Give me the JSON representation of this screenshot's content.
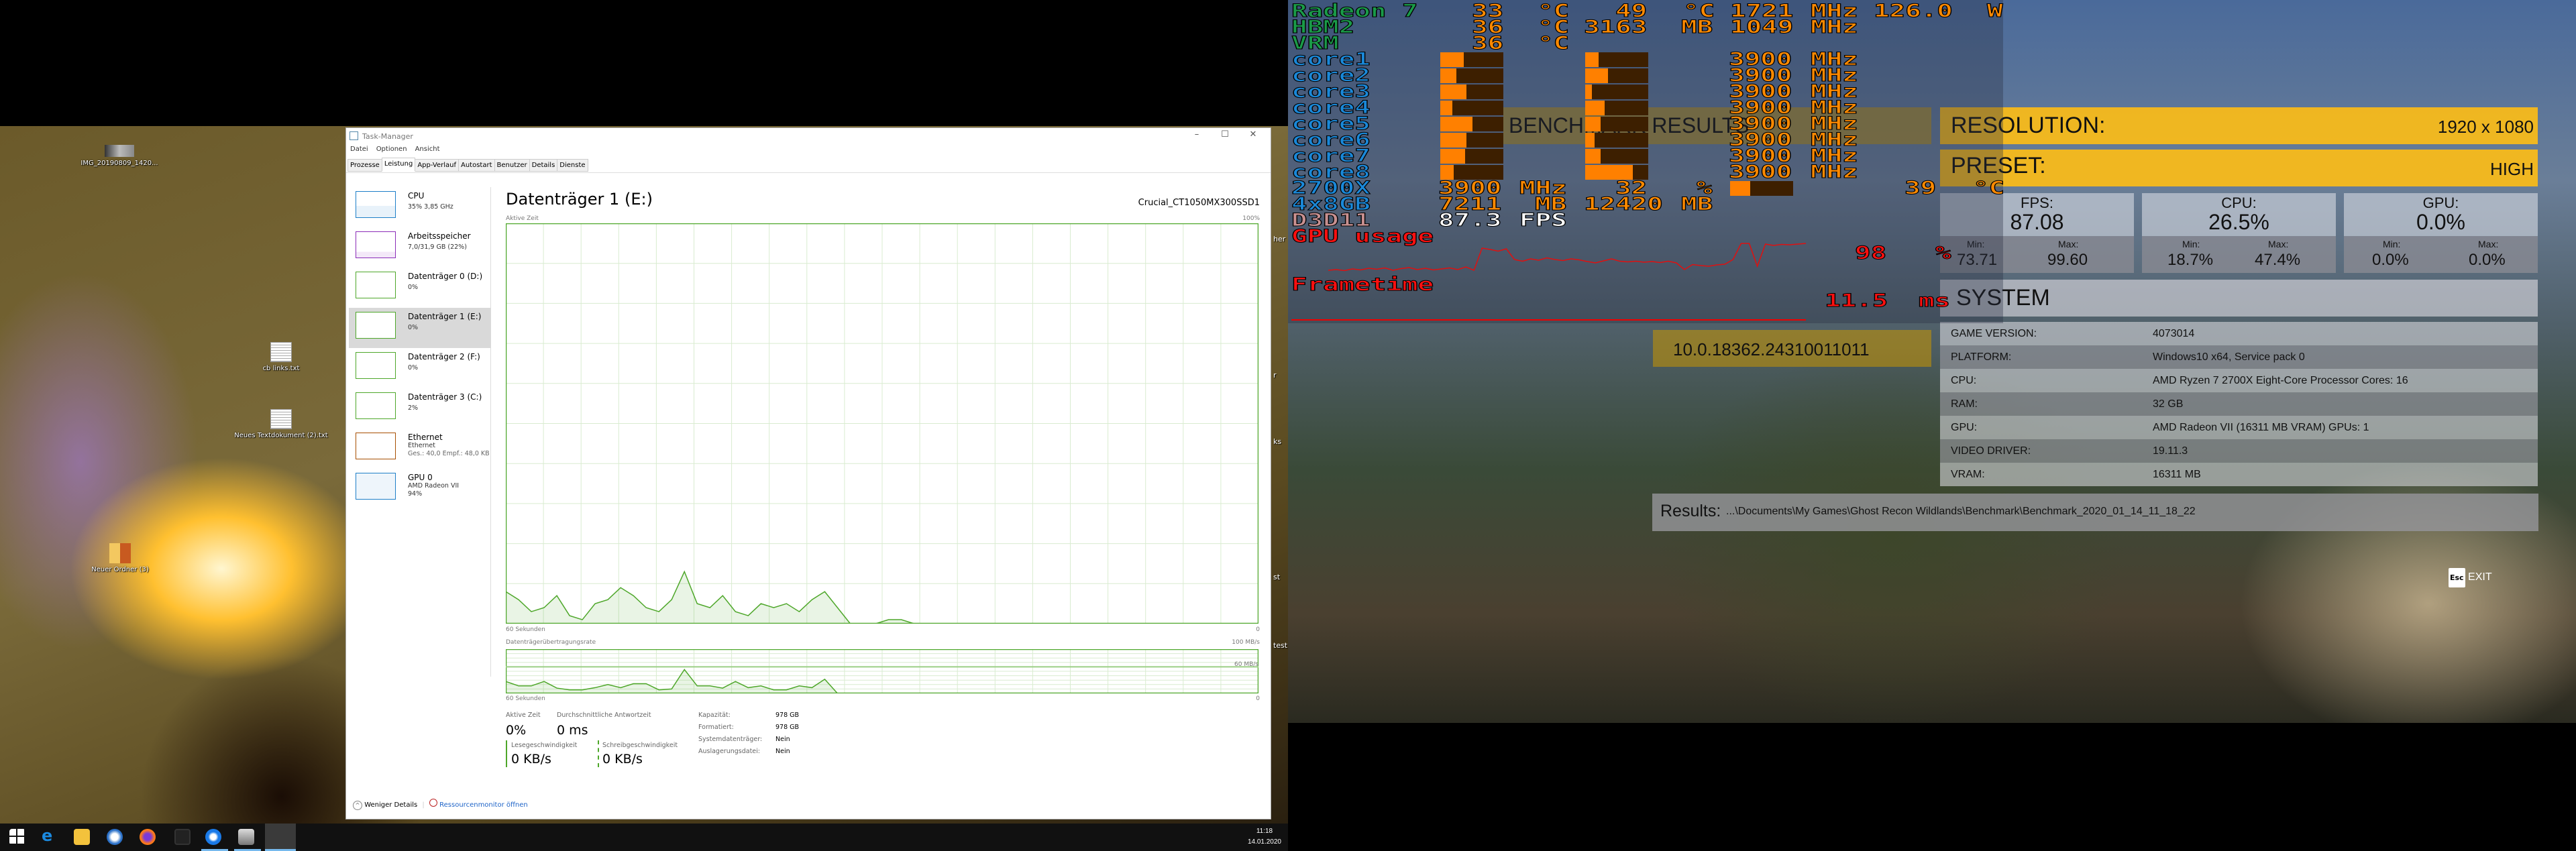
{
  "desktop": {
    "icons": [
      {
        "label": "IMG_20190809_1420..."
      },
      {
        "label": "cb links.txt"
      },
      {
        "label": "Neues Textdokument (2).txt"
      },
      {
        "label": "Neuer Ordner (3)"
      }
    ],
    "edge_fragments": [
      "her",
      "r",
      "ks",
      "st",
      "test"
    ]
  },
  "taskbar": {
    "icons": [
      "windows-start",
      "edge",
      "file-explorer",
      "thunderbird",
      "firefox",
      "app",
      "uplay",
      "app2",
      "task-manager"
    ],
    "time": "11:18",
    "date": "14.01.2020"
  },
  "taskmanager": {
    "title": "Task-Manager",
    "menu": [
      "Datei",
      "Optionen",
      "Ansicht"
    ],
    "tabs": [
      "Prozesse",
      "Leistung",
      "App-Verlauf",
      "Autostart",
      "Benutzer",
      "Details",
      "Dienste"
    ],
    "active_tab": "Leistung",
    "sidebar": [
      {
        "name": "CPU",
        "sub": "35% 3,85 GHz",
        "color": "#1e7fc8"
      },
      {
        "name": "Arbeitsspeicher",
        "sub": "7,0/31,9 GB (22%)",
        "color": "#8b2cb8"
      },
      {
        "name": "Datenträger 0 (D:)",
        "sub": "0%",
        "color": "#4ea72a"
      },
      {
        "name": "Datenträger 1 (E:)",
        "sub": "0%",
        "color": "#4ea72a"
      },
      {
        "name": "Datenträger 2 (F:)",
        "sub": "0%",
        "color": "#4ea72a"
      },
      {
        "name": "Datenträger 3 (C:)",
        "sub": "2%",
        "color": "#4ea72a"
      },
      {
        "name": "Ethernet",
        "sub": "Ethernet",
        "sub2": "Ges.: 40,0  Empf.: 48,0 KB",
        "color": "#a74f01"
      },
      {
        "name": "GPU 0",
        "sub": "AMD Radeon VII",
        "sub2": "94%",
        "color": "#1e7fc8"
      }
    ],
    "heading": "Datenträger 1 (E:)",
    "model": "Crucial_CT1050MX300SSD1",
    "graph1": {
      "label": "Aktive Zeit",
      "max": "100%",
      "time": "60 Sekunden",
      "min": "0",
      "values": [
        8,
        6,
        3,
        4,
        7,
        2,
        1,
        5,
        6,
        9,
        7,
        4,
        3,
        6,
        13,
        5,
        4,
        7,
        3,
        2,
        5,
        4,
        5,
        3,
        6,
        8,
        4,
        0,
        0,
        0,
        1,
        1,
        0,
        0,
        0,
        0,
        0,
        0,
        0,
        0,
        0,
        0,
        0,
        0,
        0,
        0,
        0,
        0,
        0,
        0,
        0,
        0,
        0,
        0,
        0,
        0,
        0,
        0,
        0,
        0
      ]
    },
    "graph2": {
      "label": "Datenträgerübertragungsrate",
      "max": "100 MB/s",
      "mid": "60 MB/s",
      "time": "60 Sekunden",
      "min": "0",
      "values": [
        27,
        17,
        17,
        27,
        12,
        8,
        8,
        13,
        20,
        13,
        22,
        22,
        8,
        10,
        54,
        17,
        17,
        12,
        27,
        13,
        17,
        8,
        8,
        17,
        13,
        32,
        0,
        0,
        0,
        0,
        0,
        0,
        0,
        0,
        0,
        0,
        0,
        0,
        0,
        0,
        0,
        0,
        0,
        0,
        0,
        0,
        0,
        0,
        0,
        0,
        0,
        0,
        0,
        0,
        0,
        0,
        0,
        0,
        0,
        0
      ]
    },
    "stats": {
      "active_label": "Aktive Zeit",
      "active_value": "0%",
      "resp_label": "Durchschnittliche Antwortzeit",
      "resp_value": "0 ms",
      "read_label": "Lesegeschwindigkeit",
      "read_value": "0 KB/s",
      "write_label": "Schreibgeschwindigkeit",
      "write_value": "0 KB/s",
      "props": [
        {
          "k": "Kapazität:",
          "v": "978 GB"
        },
        {
          "k": "Formatiert:",
          "v": "978 GB"
        },
        {
          "k": "Systemdatenträger:",
          "v": "Nein"
        },
        {
          "k": "Auslagerungsdatei:",
          "v": "Nein"
        }
      ]
    },
    "fewer_details": "Weniger Details",
    "resmon": "Ressourcenmonitor öffnen"
  },
  "osd": {
    "gpu": {
      "label": "Radeon 7",
      "temp": "33",
      "temp_unit": "°C",
      "hotspot": "49",
      "hotspot_unit": "°C",
      "clock": "1721",
      "clock_unit": "MHz",
      "power": "126.0",
      "power_unit": "W"
    },
    "hbm": {
      "label": "HBM2",
      "temp": "36",
      "temp_unit": "°C",
      "mem": "3163",
      "mem_unit": "MB",
      "clock": "1049",
      "clock_unit": "MHz"
    },
    "vrm": {
      "label": "VRM",
      "temp": "36",
      "temp_unit": "°C"
    },
    "cores": [
      {
        "label": "core1",
        "bar1": 0.37,
        "bar2": 0.21,
        "freq": "3900",
        "unit": "MHz"
      },
      {
        "label": "core2",
        "bar1": 0.26,
        "bar2": 0.36,
        "freq": "3900",
        "unit": "MHz"
      },
      {
        "label": "core3",
        "bar1": 0.41,
        "bar2": 0.11,
        "freq": "3900",
        "unit": "MHz"
      },
      {
        "label": "core4",
        "bar1": 0.19,
        "bar2": 0.31,
        "freq": "3900",
        "unit": "MHz"
      },
      {
        "label": "core5",
        "bar1": 0.51,
        "bar2": 0.24,
        "freq": "3900",
        "unit": "MHz"
      },
      {
        "label": "core6",
        "bar1": 0.41,
        "bar2": 0.15,
        "freq": "3900",
        "unit": "MHz"
      },
      {
        "label": "core7",
        "bar1": 0.39,
        "bar2": 0.24,
        "freq": "3900",
        "unit": "MHz"
      },
      {
        "label": "core8",
        "bar1": 0.21,
        "bar2": 0.75,
        "freq": "3900",
        "unit": "MHz"
      }
    ],
    "cpu": {
      "label": "2700X",
      "clock": "3900",
      "clock_unit": "MHz",
      "load": "32",
      "load_unit": "%",
      "bar": 0.32,
      "temp": "39",
      "temp_unit": "°C"
    },
    "ram": {
      "label": "4x8GB",
      "used": "7211",
      "used_unit": "MB",
      "total": "12420",
      "total_unit": "MB"
    },
    "api": {
      "label": "D3D11",
      "fps": "87.3",
      "fps_unit": "FPS"
    },
    "gpu_usage": {
      "label": "GPU usage",
      "value": "98",
      "unit": "%",
      "values": [
        18,
        20,
        17,
        22,
        19,
        24,
        21,
        25,
        18,
        23,
        26,
        20,
        24,
        19,
        22,
        25,
        20,
        28,
        18,
        84,
        80,
        75,
        82,
        50,
        45,
        52,
        48,
        55,
        50,
        47,
        52,
        49,
        44,
        40,
        46,
        52,
        45,
        43,
        45,
        42,
        44,
        41,
        45,
        40,
        20,
        35,
        32,
        30,
        34,
        36,
        50,
        98,
        98,
        30,
        96,
        92,
        95,
        94,
        96,
        98
      ]
    },
    "frametime": {
      "label": "Frametime",
      "value": "11.5",
      "unit": "ms"
    }
  },
  "benchmark": {
    "title": "BENCHMARK RESULTS",
    "version": "10.0.18362.24310011011",
    "resolution_label": "RESOLUTION:",
    "resolution": "1920 x 1080",
    "preset_label": "PRESET:",
    "preset": "HIGH",
    "stats": [
      {
        "label": "FPS:",
        "value": "87.08",
        "min": "73.71",
        "max": "99.60"
      },
      {
        "label": "CPU:",
        "value": "26.5%",
        "min": "18.7%",
        "max": "47.4%"
      },
      {
        "label": "GPU:",
        "value": "0.0%",
        "min": "0.0%",
        "max": "0.0%"
      }
    ],
    "min_label": "Min:",
    "max_label": "Max:",
    "system_title": "SYSTEM",
    "system": [
      {
        "k": "GAME VERSION:",
        "v": "4073014"
      },
      {
        "k": "PLATFORM:",
        "v": "Windows10 x64, Service pack 0"
      },
      {
        "k": "CPU:",
        "v": "AMD Ryzen 7 2700X Eight-Core Processor Cores: 16"
      },
      {
        "k": "RAM:",
        "v": "32 GB"
      },
      {
        "k": "GPU:",
        "v": "AMD Radeon VII (16311 MB VRAM) GPUs: 1"
      },
      {
        "k": "VIDEO DRIVER:",
        "v": "19.11.3"
      },
      {
        "k": "VRAM:",
        "v": "16311 MB"
      }
    ],
    "results_label": "Results:",
    "results_path": "...\\Documents\\My Games\\Ghost Recon Wildlands\\Benchmark\\Benchmark_2020_01_14_11_18_22",
    "esc_key": "Esc",
    "exit_label": "EXIT"
  }
}
